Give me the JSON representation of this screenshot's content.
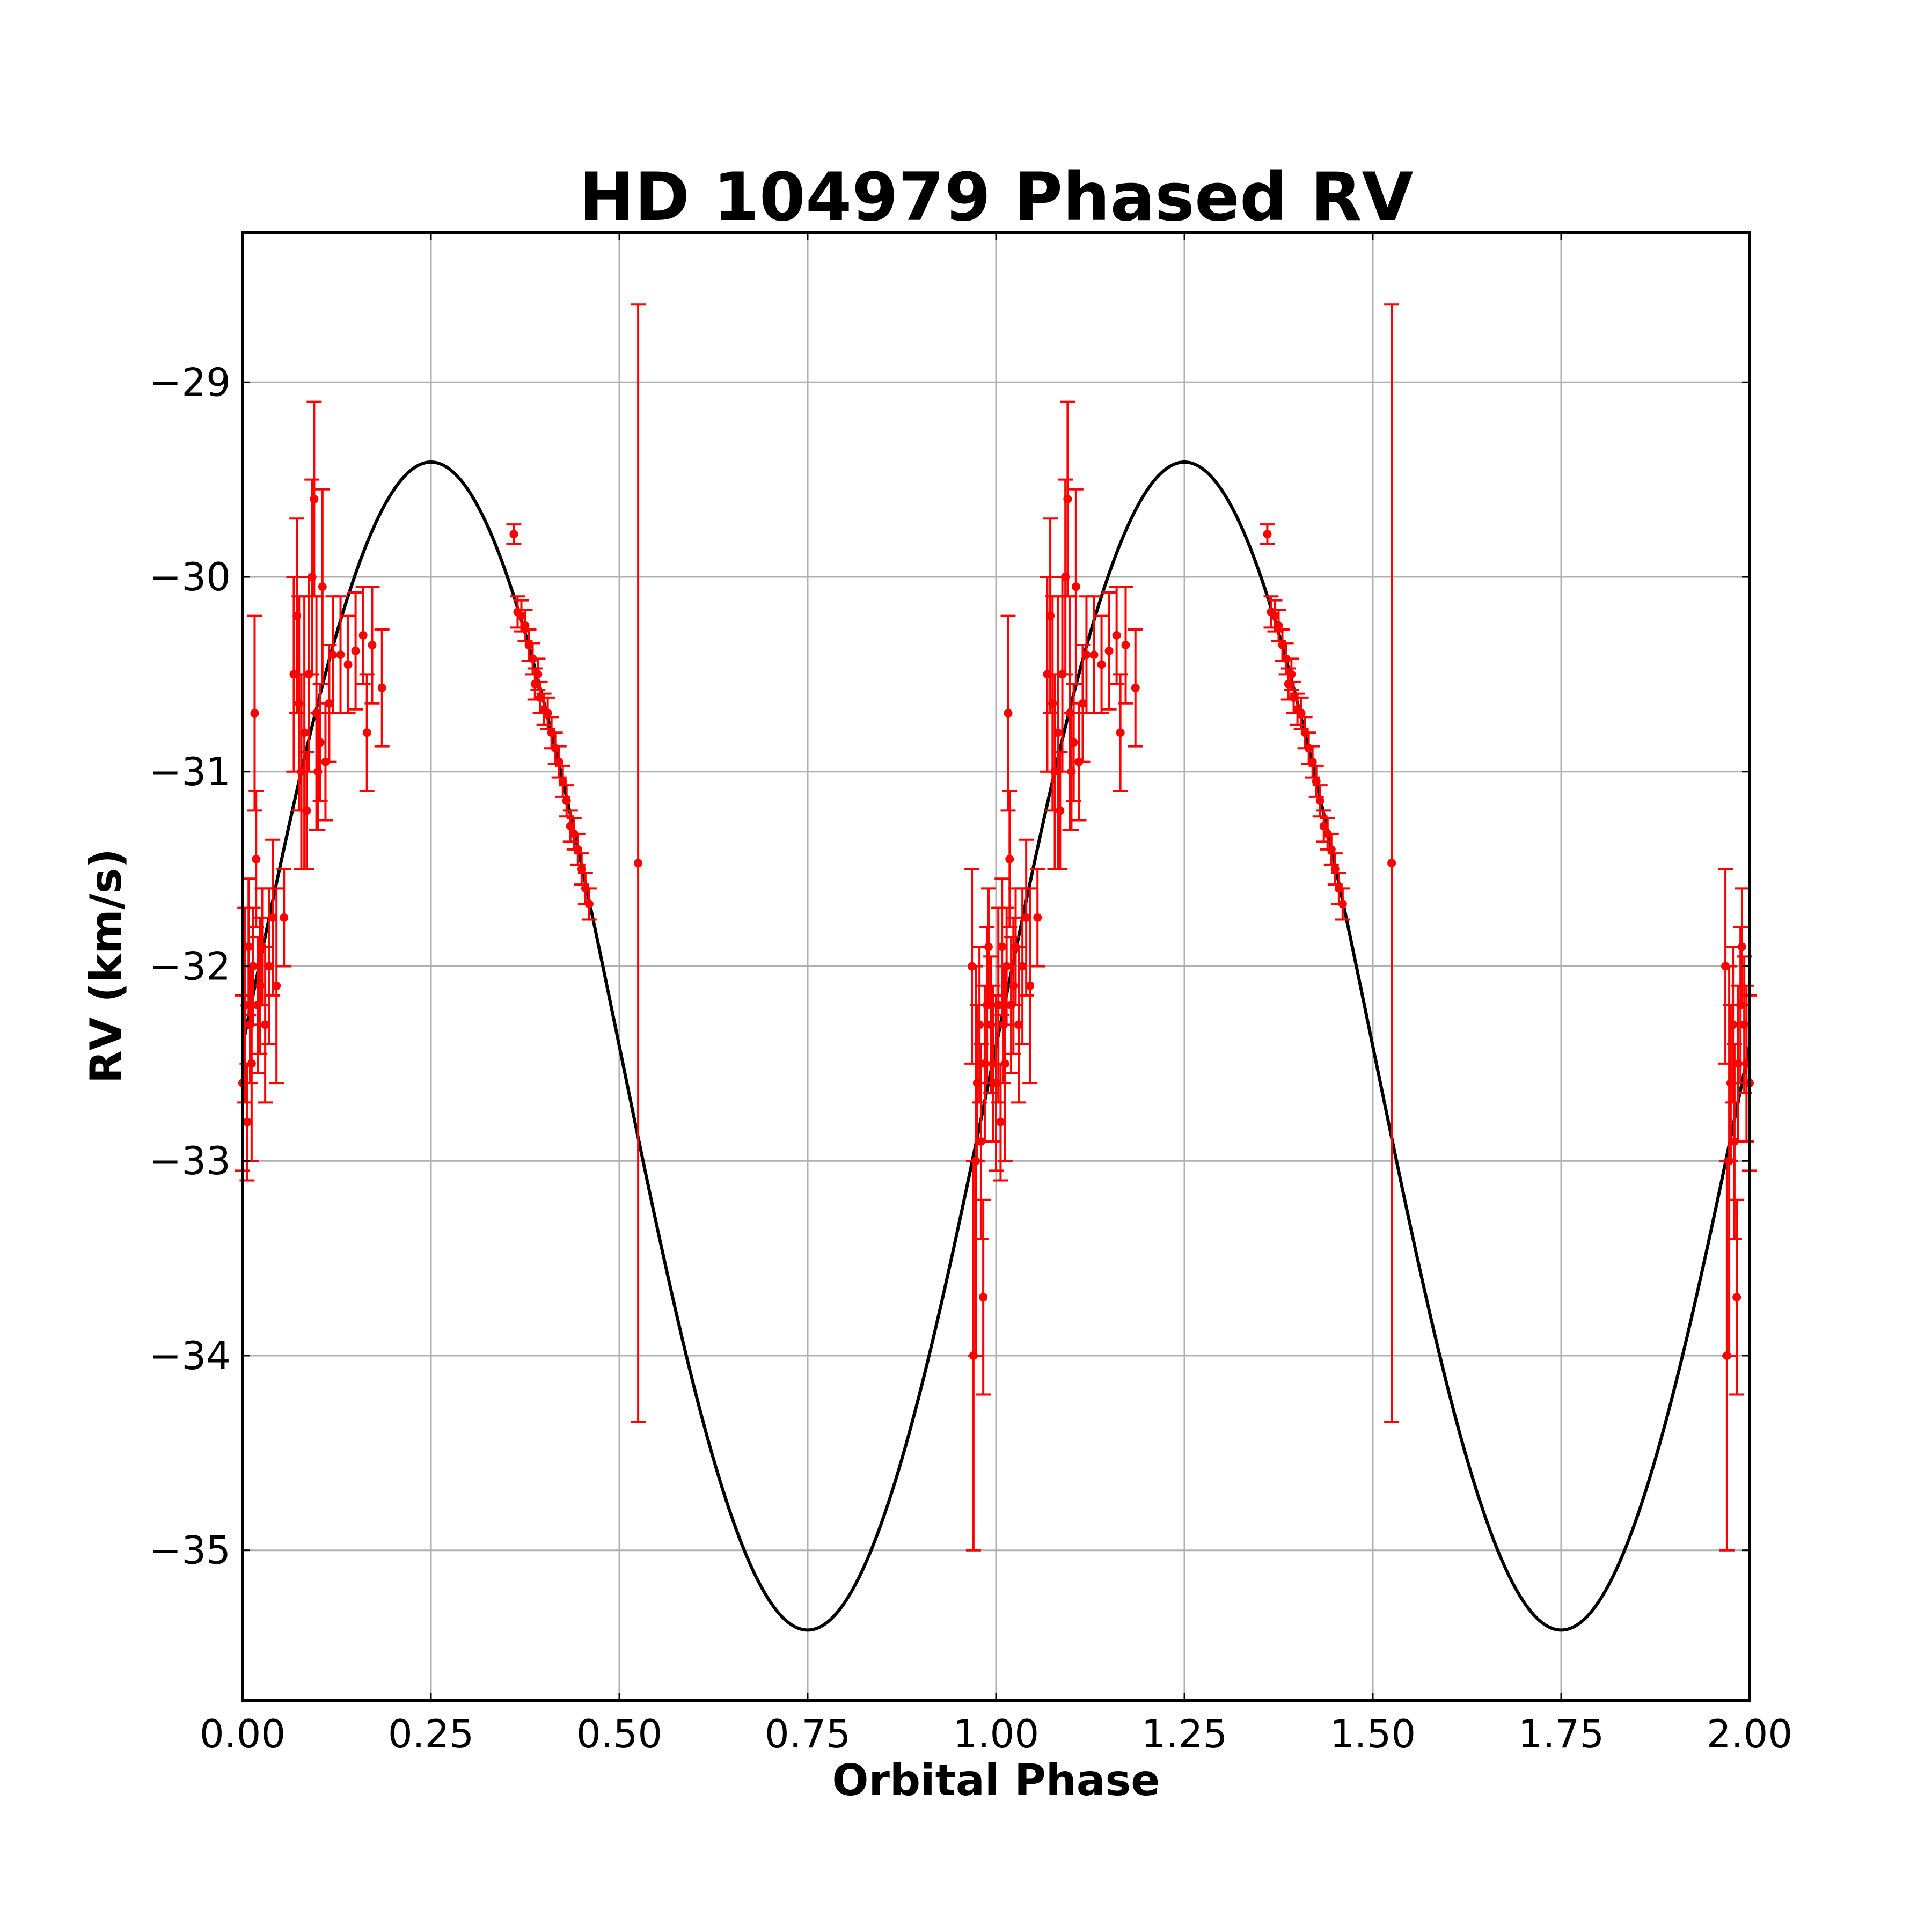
{
  "chart_data": {
    "type": "scatter",
    "title": "HD 104979 Phased RV",
    "xlabel": "Orbital Phase",
    "ylabel": "RV (km/s)",
    "xlim": [
      0.0,
      2.0
    ],
    "ylim": [
      -35.77,
      -28.23
    ],
    "x_ticks": [
      0.0,
      0.25,
      0.5,
      0.75,
      1.0,
      1.25,
      1.5,
      1.75,
      2.0
    ],
    "x_tick_labels": [
      "0.00",
      "0.25",
      "0.50",
      "0.75",
      "1.00",
      "1.25",
      "1.50",
      "1.75",
      "2.00"
    ],
    "y_ticks": [
      -35,
      -34,
      -33,
      -32,
      -31,
      -30,
      -29
    ],
    "y_tick_labels": [
      "−35",
      "−34",
      "−33",
      "−32",
      "−31",
      "−30",
      "−29"
    ],
    "grid": true,
    "colors": {
      "data": "#ff0000",
      "model": "#000000"
    },
    "series": [
      {
        "kind": "errorbar",
        "points": [
          [
            0.0,
            -32.6,
            0.45
          ],
          [
            0.003,
            -32.2,
            0.5
          ],
          [
            0.006,
            -32.8,
            0.3
          ],
          [
            0.008,
            -31.9,
            0.35
          ],
          [
            0.01,
            -32.3,
            0.3
          ],
          [
            0.012,
            -32.5,
            0.5
          ],
          [
            0.014,
            -32.0,
            0.3
          ],
          [
            0.016,
            -30.7,
            0.5
          ],
          [
            0.018,
            -31.45,
            0.35
          ],
          [
            0.02,
            -32.2,
            0.35
          ],
          [
            0.023,
            -32.1,
            0.35
          ],
          [
            0.026,
            -31.9,
            0.3
          ],
          [
            0.03,
            -32.3,
            0.4
          ],
          [
            0.035,
            -32.0,
            0.4
          ],
          [
            0.04,
            -31.75,
            0.4
          ],
          [
            0.045,
            -32.1,
            0.5
          ],
          [
            0.055,
            -31.75,
            0.25
          ],
          [
            0.068,
            -30.5,
            0.5
          ],
          [
            0.072,
            -30.2,
            0.5
          ],
          [
            0.075,
            -30.65,
            0.55
          ],
          [
            0.078,
            -31.0,
            0.5
          ],
          [
            0.082,
            -30.8,
            0.7
          ],
          [
            0.085,
            -31.2,
            0.3
          ],
          [
            0.088,
            -30.5,
            0.5
          ],
          [
            0.092,
            -30.0,
            0.5
          ],
          [
            0.095,
            -29.6,
            0.5
          ],
          [
            0.098,
            -30.7,
            0.6
          ],
          [
            0.1,
            -31.0,
            0.3
          ],
          [
            0.103,
            -30.85,
            0.3
          ],
          [
            0.106,
            -30.05,
            0.5
          ],
          [
            0.11,
            -30.95,
            0.3
          ],
          [
            0.115,
            -30.65,
            0.3
          ],
          [
            0.12,
            -30.4,
            0.3
          ],
          [
            0.13,
            -30.4,
            0.3
          ],
          [
            0.14,
            -30.45,
            0.25
          ],
          [
            0.15,
            -30.38,
            0.3
          ],
          [
            0.16,
            -30.3,
            0.25
          ],
          [
            0.165,
            -30.8,
            0.3
          ],
          [
            0.172,
            -30.35,
            0.3
          ],
          [
            0.185,
            -30.57,
            0.3
          ],
          [
            0.36,
            -29.78,
            0.05
          ],
          [
            0.365,
            -30.18,
            0.08
          ],
          [
            0.37,
            -30.2,
            0.08
          ],
          [
            0.375,
            -30.25,
            0.08
          ],
          [
            0.38,
            -30.35,
            0.08
          ],
          [
            0.385,
            -30.42,
            0.08
          ],
          [
            0.388,
            -30.55,
            0.08
          ],
          [
            0.392,
            -30.5,
            0.08
          ],
          [
            0.395,
            -30.62,
            0.08
          ],
          [
            0.4,
            -30.68,
            0.08
          ],
          [
            0.405,
            -30.7,
            0.08
          ],
          [
            0.41,
            -30.8,
            0.08
          ],
          [
            0.415,
            -30.88,
            0.08
          ],
          [
            0.42,
            -30.95,
            0.08
          ],
          [
            0.425,
            -31.05,
            0.08
          ],
          [
            0.43,
            -31.15,
            0.08
          ],
          [
            0.435,
            -31.28,
            0.08
          ],
          [
            0.44,
            -31.32,
            0.08
          ],
          [
            0.445,
            -31.4,
            0.08
          ],
          [
            0.45,
            -31.5,
            0.08
          ],
          [
            0.455,
            -31.6,
            0.08
          ],
          [
            0.46,
            -31.68,
            0.08
          ],
          [
            0.525,
            -31.47,
            2.87
          ],
          [
            0.968,
            -32.0,
            0.5
          ],
          [
            0.97,
            -34.0,
            1.0
          ],
          [
            0.973,
            -33.0,
            1.0
          ],
          [
            0.975,
            -32.6,
            0.4
          ],
          [
            0.978,
            -32.3,
            0.4
          ],
          [
            0.98,
            -32.9,
            0.5
          ],
          [
            0.983,
            -33.7,
            0.5
          ],
          [
            0.985,
            -32.5,
            0.4
          ],
          [
            0.988,
            -32.2,
            0.4
          ],
          [
            0.99,
            -31.9,
            0.3
          ],
          [
            0.993,
            -32.3,
            0.35
          ],
          [
            0.996,
            -32.5,
            0.4
          ]
        ]
      },
      {
        "kind": "line",
        "label_text": "",
        "model": {
          "gamma": -32.41,
          "semi_amplitude": 3.0,
          "peak_phase": 0.25
        }
      }
    ]
  }
}
